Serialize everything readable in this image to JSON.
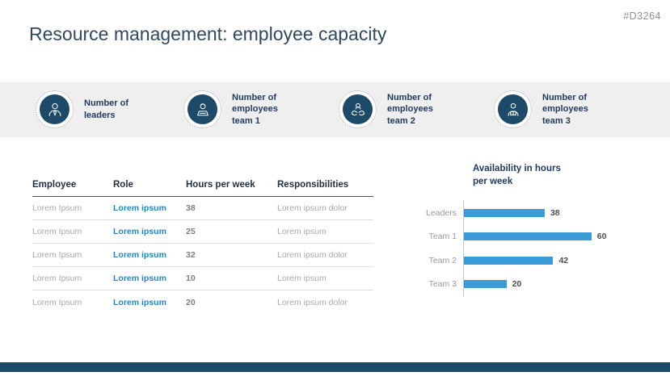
{
  "slide": {
    "id": "#D3264",
    "title": "Resource management: employee capacity"
  },
  "kpi_band": {
    "items": [
      {
        "icon": "leader-person-icon",
        "label": "Number of\nleaders"
      },
      {
        "icon": "employee-laptop-icon",
        "label": "Number of\nemployees\nteam 1"
      },
      {
        "icon": "employee-hands-icon",
        "label": "Number of\nemployees\nteam 2"
      },
      {
        "icon": "employee-book-icon",
        "label": "Number of\nemployees\nteam 3"
      }
    ]
  },
  "table": {
    "columns": [
      "Employee",
      "Role",
      "Hours per week",
      "Responsibilities"
    ],
    "rows": [
      [
        "Lorem Ipsum",
        "Lorem ipsum",
        "38",
        "Lorem ipsum dolor"
      ],
      [
        "Lorem Ipsum",
        "Lorem ipsum",
        "25",
        "Lorem ipsum"
      ],
      [
        "Lorem Ipsum",
        "Lorem ipsum",
        "32",
        "Lorem ipsum dolor"
      ],
      [
        "Lorem Ipsum",
        "Lorem ipsum",
        "10",
        "Lorem ipsum"
      ],
      [
        "Lorem Ipsum",
        "Lorem ipsum",
        "20",
        "Lorem ipsum dolor"
      ]
    ]
  },
  "chart_data": {
    "type": "bar",
    "orientation": "horizontal",
    "title": "Availability in hours\nper week",
    "categories": [
      "Leaders",
      "Team 1",
      "Team 2",
      "Team 3"
    ],
    "values": [
      38,
      60,
      42,
      20
    ],
    "xlim": [
      0,
      63
    ],
    "grid": false,
    "legend": false,
    "bar_color": "#3B9BD9"
  },
  "colors": {
    "accent_navy": "#1C4A68",
    "label_navy": "#1F3A5C",
    "bar_blue": "#3B9BD9",
    "role_blue": "#1F86C7",
    "band_gray": "#EFEFEF"
  }
}
